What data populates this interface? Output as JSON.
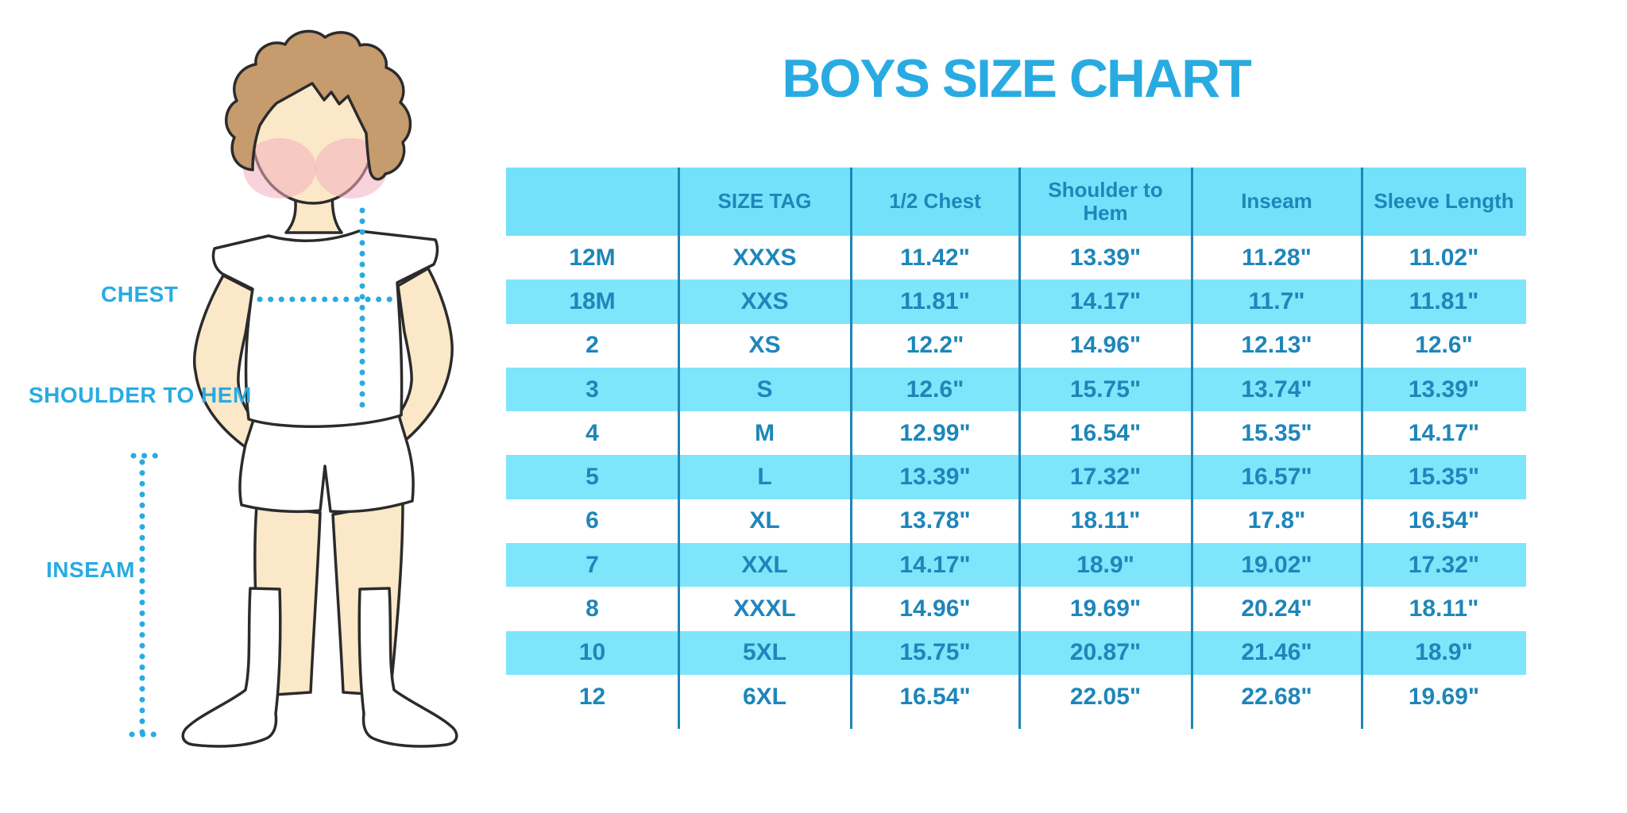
{
  "title": "BOYS SIZE CHART",
  "colors": {
    "accent": "#29ABE2",
    "header-fill": "#74E1FA",
    "row-fill": "#7EE5FB",
    "line-color": "#1E86B9",
    "table-text": "#1E86B9",
    "skin": "#FBE8C8",
    "hair": "#C69B6D",
    "outline": "#2B2B2B",
    "blush": "#F3AFC0"
  },
  "figure": {
    "chest_label": "CHEST",
    "shoulder_to_hem_label": "SHOULDER TO HEM",
    "inseam_label": "INSEAM"
  },
  "table": {
    "headers": [
      "",
      "SIZE TAG",
      "1/2 Chest",
      "Shoulder to Hem",
      "Inseam",
      "Sleeve Length"
    ],
    "rows": [
      [
        "12M",
        "XXXS",
        "11.42\"",
        "13.39\"",
        "11.28\"",
        "11.02\""
      ],
      [
        "18M",
        "XXS",
        "11.81\"",
        "14.17\"",
        "11.7\"",
        "11.81\""
      ],
      [
        "2",
        "XS",
        "12.2\"",
        "14.96\"",
        "12.13\"",
        "12.6\""
      ],
      [
        "3",
        "S",
        "12.6\"",
        "15.75\"",
        "13.74\"",
        "13.39\""
      ],
      [
        "4",
        "M",
        "12.99\"",
        "16.54\"",
        "15.35\"",
        "14.17\""
      ],
      [
        "5",
        "L",
        "13.39\"",
        "17.32\"",
        "16.57\"",
        "15.35\""
      ],
      [
        "6",
        "XL",
        "13.78\"",
        "18.11\"",
        "17.8\"",
        "16.54\""
      ],
      [
        "7",
        "XXL",
        "14.17\"",
        "18.9\"",
        "19.02\"",
        "17.32\""
      ],
      [
        "8",
        "XXXL",
        "14.96\"",
        "19.69\"",
        "20.24\"",
        "18.11\""
      ],
      [
        "10",
        "5XL",
        "15.75\"",
        "20.87\"",
        "21.46\"",
        "18.9\""
      ],
      [
        "12",
        "6XL",
        "16.54\"",
        "22.05\"",
        "22.68\"",
        "19.69\""
      ]
    ]
  },
  "chart_data": {
    "type": "table",
    "title": "BOYS SIZE CHART",
    "columns": [
      "",
      "SIZE TAG",
      "1/2 Chest",
      "Shoulder to Hem",
      "Inseam",
      "Sleeve Length"
    ],
    "rows": [
      [
        "12M",
        "XXXS",
        "11.42\"",
        "13.39\"",
        "11.28\"",
        "11.02\""
      ],
      [
        "18M",
        "XXS",
        "11.81\"",
        "14.17\"",
        "11.7\"",
        "11.81\""
      ],
      [
        "2",
        "XS",
        "12.2\"",
        "14.96\"",
        "12.13\"",
        "12.6\""
      ],
      [
        "3",
        "S",
        "12.6\"",
        "15.75\"",
        "13.74\"",
        "13.39\""
      ],
      [
        "4",
        "M",
        "12.99\"",
        "16.54\"",
        "15.35\"",
        "14.17\""
      ],
      [
        "5",
        "L",
        "13.39\"",
        "17.32\"",
        "16.57\"",
        "15.35\""
      ],
      [
        "6",
        "XL",
        "13.78\"",
        "18.11\"",
        "17.8\"",
        "16.54\""
      ],
      [
        "7",
        "XXL",
        "14.17\"",
        "18.9\"",
        "19.02\"",
        "17.32\""
      ],
      [
        "8",
        "XXXL",
        "14.96\"",
        "19.69\"",
        "20.24\"",
        "18.11\""
      ],
      [
        "10",
        "5XL",
        "15.75\"",
        "20.87\"",
        "21.46\"",
        "18.9\""
      ],
      [
        "12",
        "6XL",
        "16.54\"",
        "22.05\"",
        "22.68\"",
        "19.69\""
      ]
    ],
    "row_striping": "alternating white / cyan starting white",
    "legend_position": "none",
    "grid": "vertical column dividers only"
  }
}
